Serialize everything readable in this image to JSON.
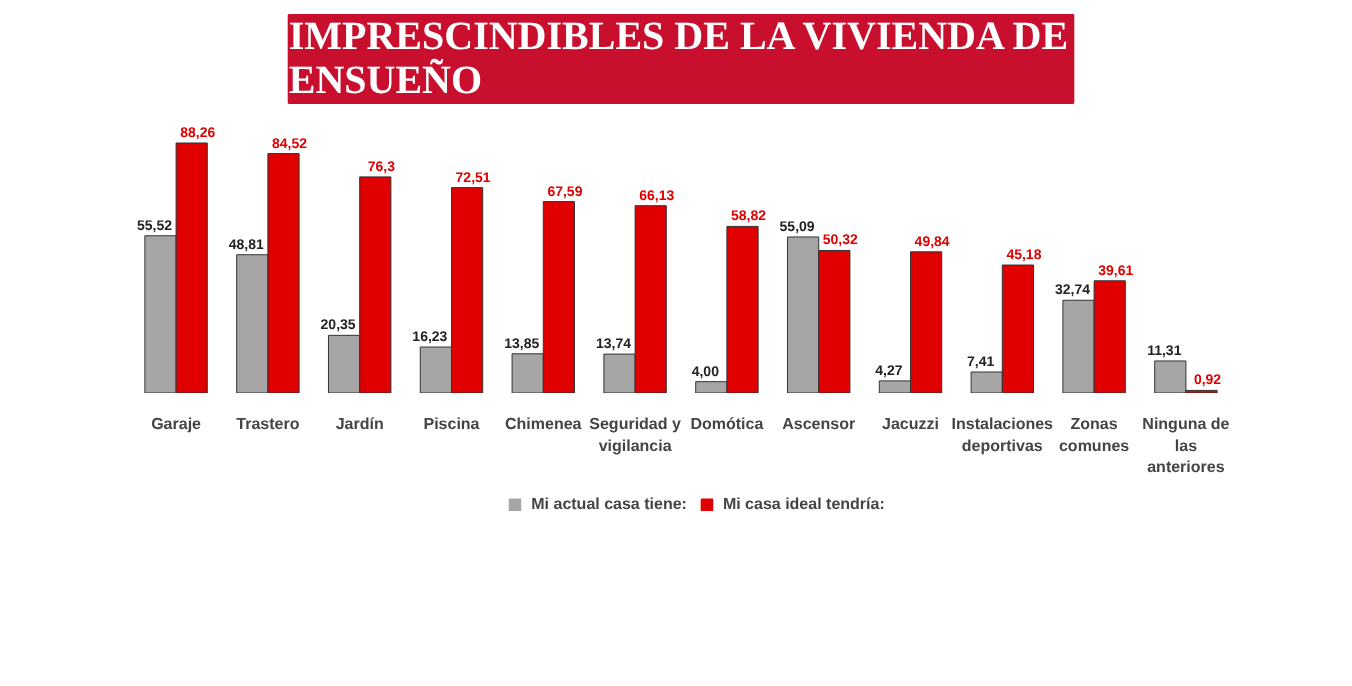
{
  "chart_data": {
    "type": "bar",
    "title": "IMPRESCINDIBLES DE LA VIVIENDA DE ENSUEÑO",
    "categories": [
      "Garaje",
      "Trastero",
      "Jardín",
      "Piscina",
      "Chimenea",
      "Seguridad y vigilancia",
      "Domótica",
      "Ascensor",
      "Jacuzzi",
      "Instalaciones deportivas",
      "Zonas comunes",
      "Ninguna de las anteriores"
    ],
    "series": [
      {
        "name": "Mi actual casa tiene:",
        "color": "#a6a6a6",
        "values": [
          55.52,
          48.81,
          20.35,
          16.23,
          13.85,
          13.74,
          4.0,
          55.09,
          4.27,
          7.41,
          32.74,
          11.31
        ],
        "value_labels": [
          "55,52",
          "48,81",
          "20,35",
          "16,23",
          "13,85",
          "13,74",
          "4,00",
          "55,09",
          "4,27",
          "7,41",
          "32,74",
          "11,31"
        ]
      },
      {
        "name": "Mi casa ideal tendría:",
        "color": "#e00000",
        "values": [
          88.26,
          84.52,
          76.3,
          72.51,
          67.59,
          66.13,
          58.82,
          50.32,
          49.84,
          45.18,
          39.61,
          0.92
        ],
        "value_labels": [
          "88,26",
          "84,52",
          "76,3",
          "72,51",
          "67,59",
          "66,13",
          "58,82",
          "50,32",
          "49,84",
          "45,18",
          "39,61",
          "0,92"
        ]
      }
    ],
    "legend": "bottom"
  }
}
